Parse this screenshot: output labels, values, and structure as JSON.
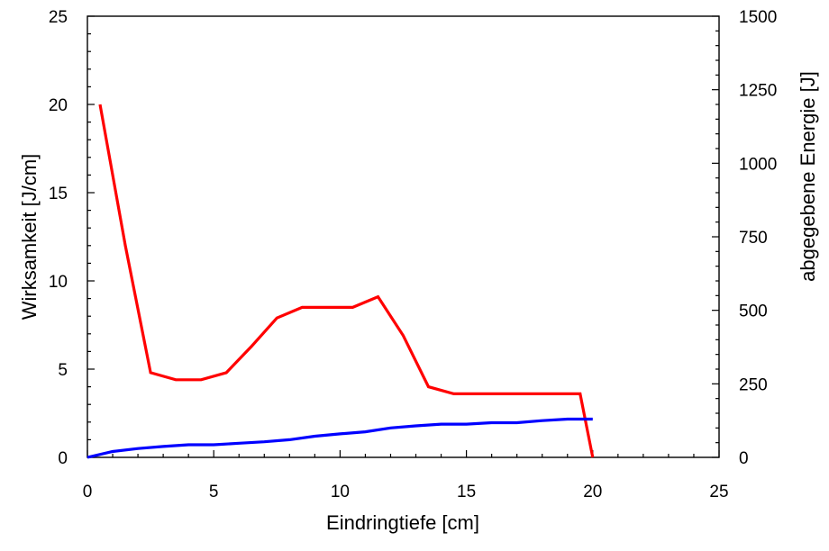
{
  "chart_data": {
    "type": "line",
    "xlabel": "Eindringtiefe [cm]",
    "ylabel": "Wirksamkeit [J/cm]",
    "y2label": "abgegebene Energie [J]",
    "xlim": [
      0,
      25
    ],
    "ylim": [
      0,
      25
    ],
    "y2lim": [
      0,
      1500
    ],
    "xticks": [
      "0",
      "5",
      "10",
      "15",
      "20",
      "25"
    ],
    "yticks": [
      "0",
      "5",
      "10",
      "15",
      "20",
      "25"
    ],
    "y2ticks": [
      "0",
      "250",
      "500",
      "750",
      "1000",
      "1250",
      "1500"
    ],
    "grid": false,
    "series": [
      {
        "axis": "left",
        "color": "#ff0000",
        "points": [
          [
            0.5,
            20.0
          ],
          [
            1.5,
            12.0
          ],
          [
            2.5,
            4.8
          ],
          [
            3.5,
            4.4
          ],
          [
            4.5,
            4.4
          ],
          [
            5.5,
            4.8
          ],
          [
            6.5,
            6.3
          ],
          [
            7.5,
            7.9
          ],
          [
            8.5,
            8.5
          ],
          [
            9.5,
            8.5
          ],
          [
            10.5,
            8.5
          ],
          [
            11.5,
            9.1
          ],
          [
            12.5,
            6.9
          ],
          [
            13.5,
            4.0
          ],
          [
            14.5,
            3.6
          ],
          [
            15.5,
            3.6
          ],
          [
            16.5,
            3.6
          ],
          [
            17.5,
            3.6
          ],
          [
            18.5,
            3.6
          ],
          [
            19.5,
            3.6
          ],
          [
            20.0,
            0.0
          ]
        ]
      },
      {
        "axis": "right",
        "color": "#0000ff",
        "points": [
          [
            0,
            0
          ],
          [
            1,
            20
          ],
          [
            2,
            30
          ],
          [
            3,
            37
          ],
          [
            4,
            43
          ],
          [
            5,
            43
          ],
          [
            6,
            48
          ],
          [
            7,
            53
          ],
          [
            8,
            60
          ],
          [
            9,
            72
          ],
          [
            10,
            80
          ],
          [
            11,
            87
          ],
          [
            12,
            100
          ],
          [
            13,
            107
          ],
          [
            14,
            113
          ],
          [
            15,
            113
          ],
          [
            16,
            118
          ],
          [
            17,
            118
          ],
          [
            18,
            125
          ],
          [
            19,
            130
          ],
          [
            20,
            130
          ]
        ]
      }
    ]
  }
}
